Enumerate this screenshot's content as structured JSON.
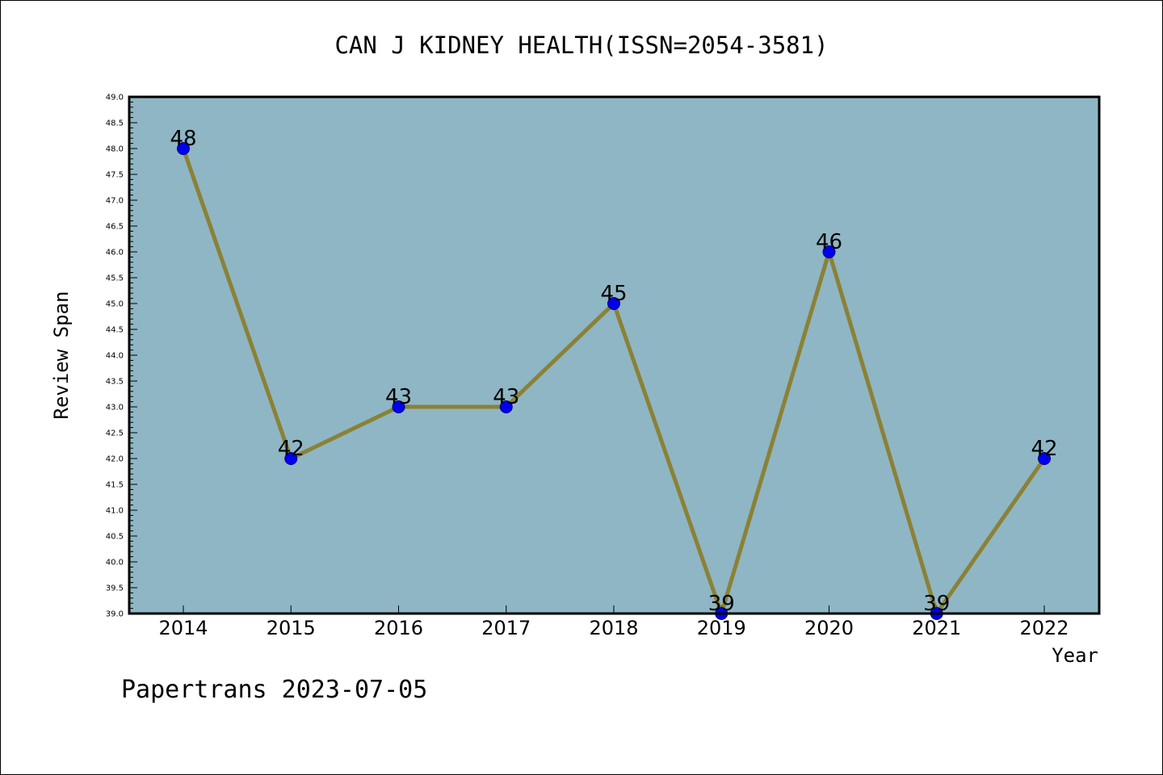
{
  "chart_data": {
    "type": "line",
    "title": "CAN J KIDNEY HEALTH(ISSN=2054-3581)",
    "xlabel": "Year",
    "ylabel": "Review Span",
    "footer": "Papertrans 2023-07-05",
    "categories": [
      "2014",
      "2015",
      "2016",
      "2017",
      "2018",
      "2019",
      "2020",
      "2021",
      "2022"
    ],
    "values": [
      48,
      42,
      43,
      43,
      45,
      39,
      46,
      39,
      42
    ],
    "data_labels": [
      "48",
      "42",
      "43",
      "43",
      "45",
      "39",
      "46",
      "39",
      "42"
    ],
    "ylim": [
      39.0,
      49.0
    ],
    "yticks": [
      "39.0",
      "39.5",
      "40.0",
      "40.5",
      "41.0",
      "41.5",
      "42.0",
      "42.5",
      "43.0",
      "43.5",
      "44.0",
      "44.5",
      "45.0",
      "45.5",
      "46.0",
      "46.5",
      "47.0",
      "47.5",
      "48.0",
      "48.5",
      "49.0"
    ],
    "grid": false,
    "colors": {
      "plot_background": "#8fb6c4",
      "line": "#8b8136",
      "marker": "#0000ee",
      "marker_edge": "#000080",
      "frame": "#000000"
    }
  }
}
